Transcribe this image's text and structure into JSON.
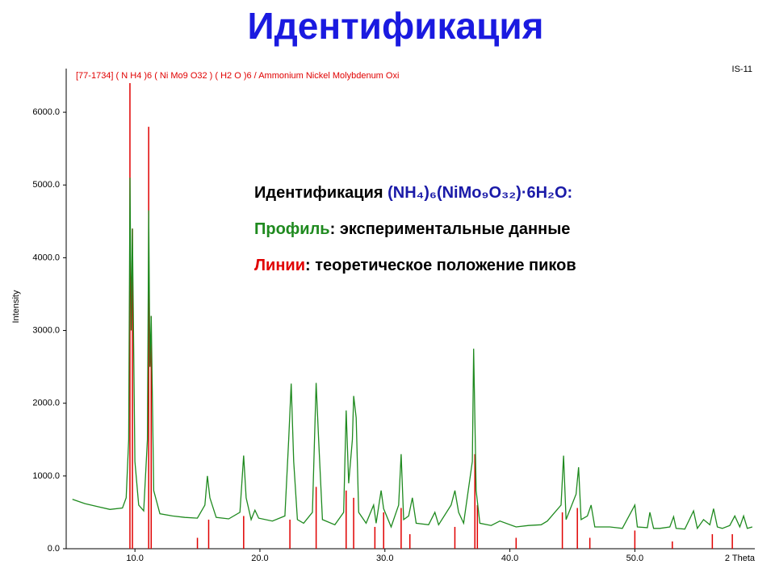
{
  "chart_data": {
    "type": "xrd",
    "title": "Идентификация",
    "header": "[77-1734]  ( N H4 )6 ( Ni Mo9 O32 ) ( H2 O )6 / Ammonium Nickel Molybdenum Oxi",
    "sample": "IS-11",
    "y_label": "Intensity",
    "x_label": "2 Theta",
    "annotations": [
      {
        "lead": "Идентификация",
        "lead_color": "#000000",
        "rest": " (NH₄)₆(NiMo₉O₃₂)·6H₂O:",
        "rest_color": "#1a1aa8"
      },
      {
        "lead": "Профиль",
        "lead_color": "#1f8a1f",
        "rest": ": экспериментальные данные",
        "rest_color": "#000000"
      },
      {
        "lead": "Линии",
        "lead_color": "#e00000",
        "rest": ": теоретическое положение пиков",
        "rest_color": "#000000"
      }
    ],
    "xlim": [
      4.5,
      59.6
    ],
    "ylim": [
      0,
      6600
    ],
    "xticks": [
      {
        "value": 10,
        "label": "10.0"
      },
      {
        "value": 20,
        "label": "20.0"
      },
      {
        "value": 30,
        "label": "30.0"
      },
      {
        "value": 40,
        "label": "40.0"
      },
      {
        "value": 50,
        "label": "50.0"
      }
    ],
    "yticks": [
      {
        "value": 0,
        "label": "0.0"
      },
      {
        "value": 1000,
        "label": "1000.0"
      },
      {
        "value": 2000,
        "label": "2000.0"
      },
      {
        "value": 3000,
        "label": "3000.0"
      },
      {
        "value": 4000,
        "label": "4000.0"
      },
      {
        "value": 5000,
        "label": "5000.0"
      },
      {
        "value": 6000,
        "label": "6000.0"
      }
    ],
    "series": [
      {
        "name": "Профиль",
        "color": "#1f8a1f",
        "x": [
          5.0,
          6.0,
          7.0,
          8.0,
          9.0,
          9.3,
          9.5,
          9.6,
          9.7,
          9.8,
          10.0,
          10.3,
          10.7,
          11.0,
          11.1,
          11.2,
          11.3,
          11.5,
          12.0,
          13,
          14,
          15,
          15.6,
          15.8,
          16.0,
          16.5,
          17.5,
          18.4,
          18.7,
          18.9,
          19.3,
          19.6,
          19.9,
          21,
          22,
          22.3,
          22.5,
          22.7,
          23,
          23.5,
          24.2,
          24.5,
          24.7,
          25.0,
          26,
          26.7,
          26.9,
          27.1,
          27.4,
          27.5,
          27.7,
          27.9,
          28.5,
          29.1,
          29.3,
          29.7,
          29.9,
          30.5,
          31.1,
          31.3,
          31.5,
          31.9,
          32.2,
          32.5,
          33.5,
          34,
          34.3,
          35.3,
          35.6,
          35.9,
          36.3,
          37,
          37.1,
          37.3,
          37.6,
          38.5,
          39.2,
          40.5,
          41.5,
          42.5,
          43,
          44.1,
          44.3,
          44.5,
          45.3,
          45.5,
          45.7,
          46.2,
          46.5,
          46.8,
          48.0,
          49,
          50,
          50.2,
          51,
          51.2,
          51.5,
          52,
          52.8,
          53.1,
          53.3,
          54,
          54.7,
          55,
          55.5,
          56,
          56.3,
          56.6,
          57,
          57.6,
          58.0,
          58.4,
          58.7,
          59,
          59.4
        ],
        "values": [
          680,
          620,
          580,
          540,
          560,
          700,
          1500,
          5100,
          3000,
          4400,
          1200,
          600,
          520,
          1500,
          4650,
          2500,
          3200,
          800,
          480,
          450,
          430,
          420,
          600,
          1000,
          700,
          430,
          410,
          500,
          1280,
          700,
          400,
          530,
          420,
          380,
          450,
          1500,
          2270,
          1200,
          400,
          350,
          500,
          2280,
          1500,
          400,
          330,
          500,
          1900,
          900,
          1500,
          2100,
          1800,
          500,
          350,
          600,
          350,
          800,
          550,
          300,
          600,
          1300,
          400,
          450,
          700,
          350,
          330,
          500,
          330,
          600,
          800,
          500,
          350,
          1200,
          2750,
          800,
          350,
          320,
          380,
          300,
          320,
          330,
          380,
          600,
          1280,
          400,
          750,
          1120,
          400,
          450,
          600,
          300,
          300,
          280,
          600,
          300,
          290,
          500,
          280,
          280,
          300,
          440,
          280,
          270,
          520,
          280,
          400,
          330,
          550,
          300,
          280,
          320,
          450,
          300,
          450,
          280,
          300
        ]
      },
      {
        "name": "Линии",
        "color": "#e00000",
        "x": [
          9.6,
          9.8,
          11.1,
          11.3,
          15.0,
          15.9,
          18.7,
          22.4,
          24.5,
          26.9,
          27.5,
          29.2,
          29.9,
          31.3,
          32.0,
          35.6,
          37.2,
          37.4,
          40.5,
          44.2,
          45.4,
          46.4,
          50.0,
          53.0,
          56.2,
          57.8
        ],
        "values": [
          6400,
          4400,
          5800,
          3200,
          150,
          400,
          450,
          400,
          850,
          800,
          700,
          300,
          500,
          560,
          200,
          300,
          1300,
          600,
          150,
          500,
          560,
          150,
          250,
          100,
          200,
          200
        ]
      }
    ]
  }
}
